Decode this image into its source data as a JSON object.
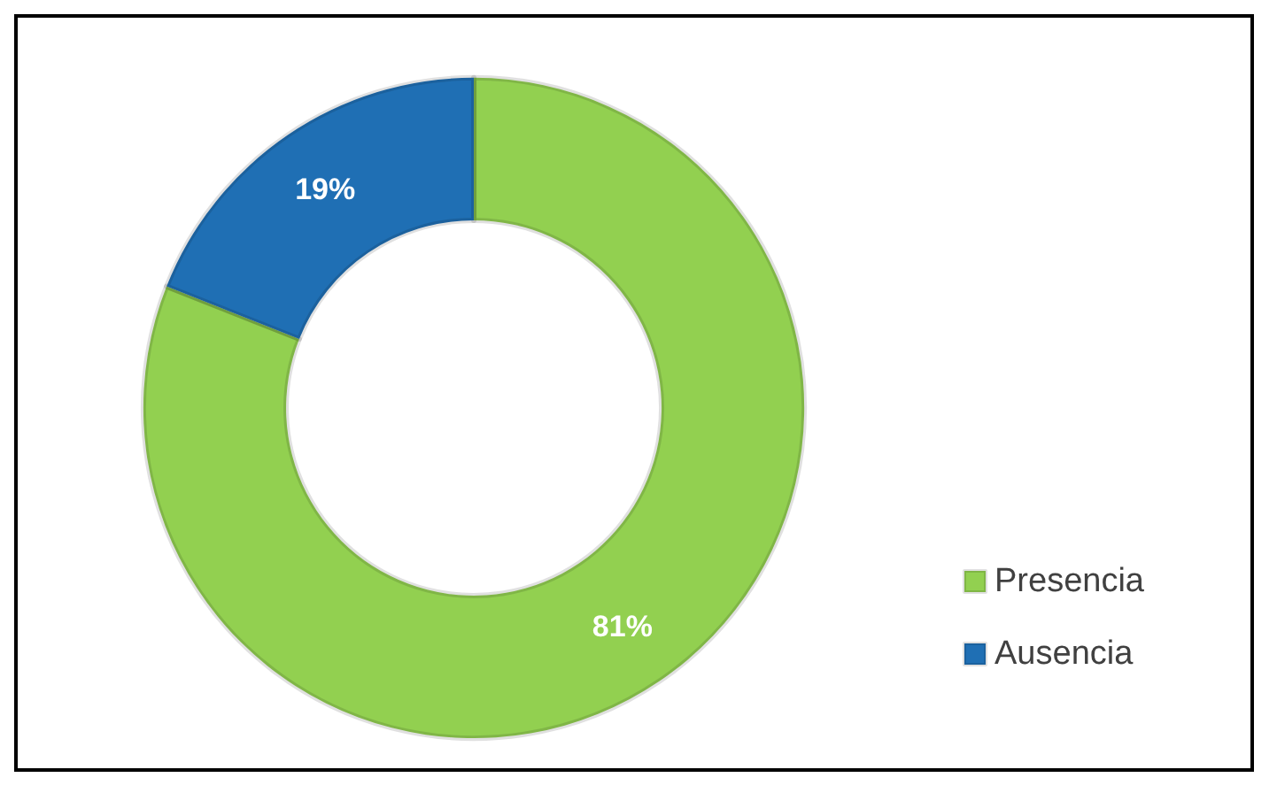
{
  "chart_data": {
    "type": "donut",
    "categories": [
      "Presencia",
      "Ausencia"
    ],
    "values": [
      81,
      19
    ],
    "colors": [
      "#92d050",
      "#1f6fb4"
    ],
    "value_labels": [
      "81%",
      "19%"
    ],
    "legend": "bottom right"
  }
}
